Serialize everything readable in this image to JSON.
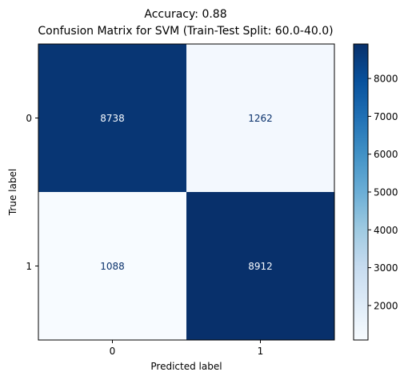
{
  "title_line1": "Accuracy: 0.88",
  "title_line2": "Confusion Matrix for SVM (Train-Test Split: 60.0-40.0)",
  "chart_data": {
    "type": "heatmap",
    "title": "Accuracy: 0.88 / Confusion Matrix for SVM (Train-Test Split: 60.0-40.0)",
    "xlabel": "Predicted label",
    "ylabel": "True label",
    "x_categories": [
      "0",
      "1"
    ],
    "y_categories": [
      "0",
      "1"
    ],
    "values": [
      [
        8738,
        1262
      ],
      [
        1088,
        8912
      ]
    ],
    "colormap": "Blues",
    "color_low": "#f7fbff",
    "color_high": "#08306b",
    "colorbar": {
      "range": [
        1088,
        8912
      ],
      "ticks": [
        "2000",
        "3000",
        "4000",
        "5000",
        "6000",
        "7000",
        "8000"
      ],
      "tick_values": [
        2000,
        3000,
        4000,
        5000,
        6000,
        7000,
        8000
      ]
    }
  }
}
